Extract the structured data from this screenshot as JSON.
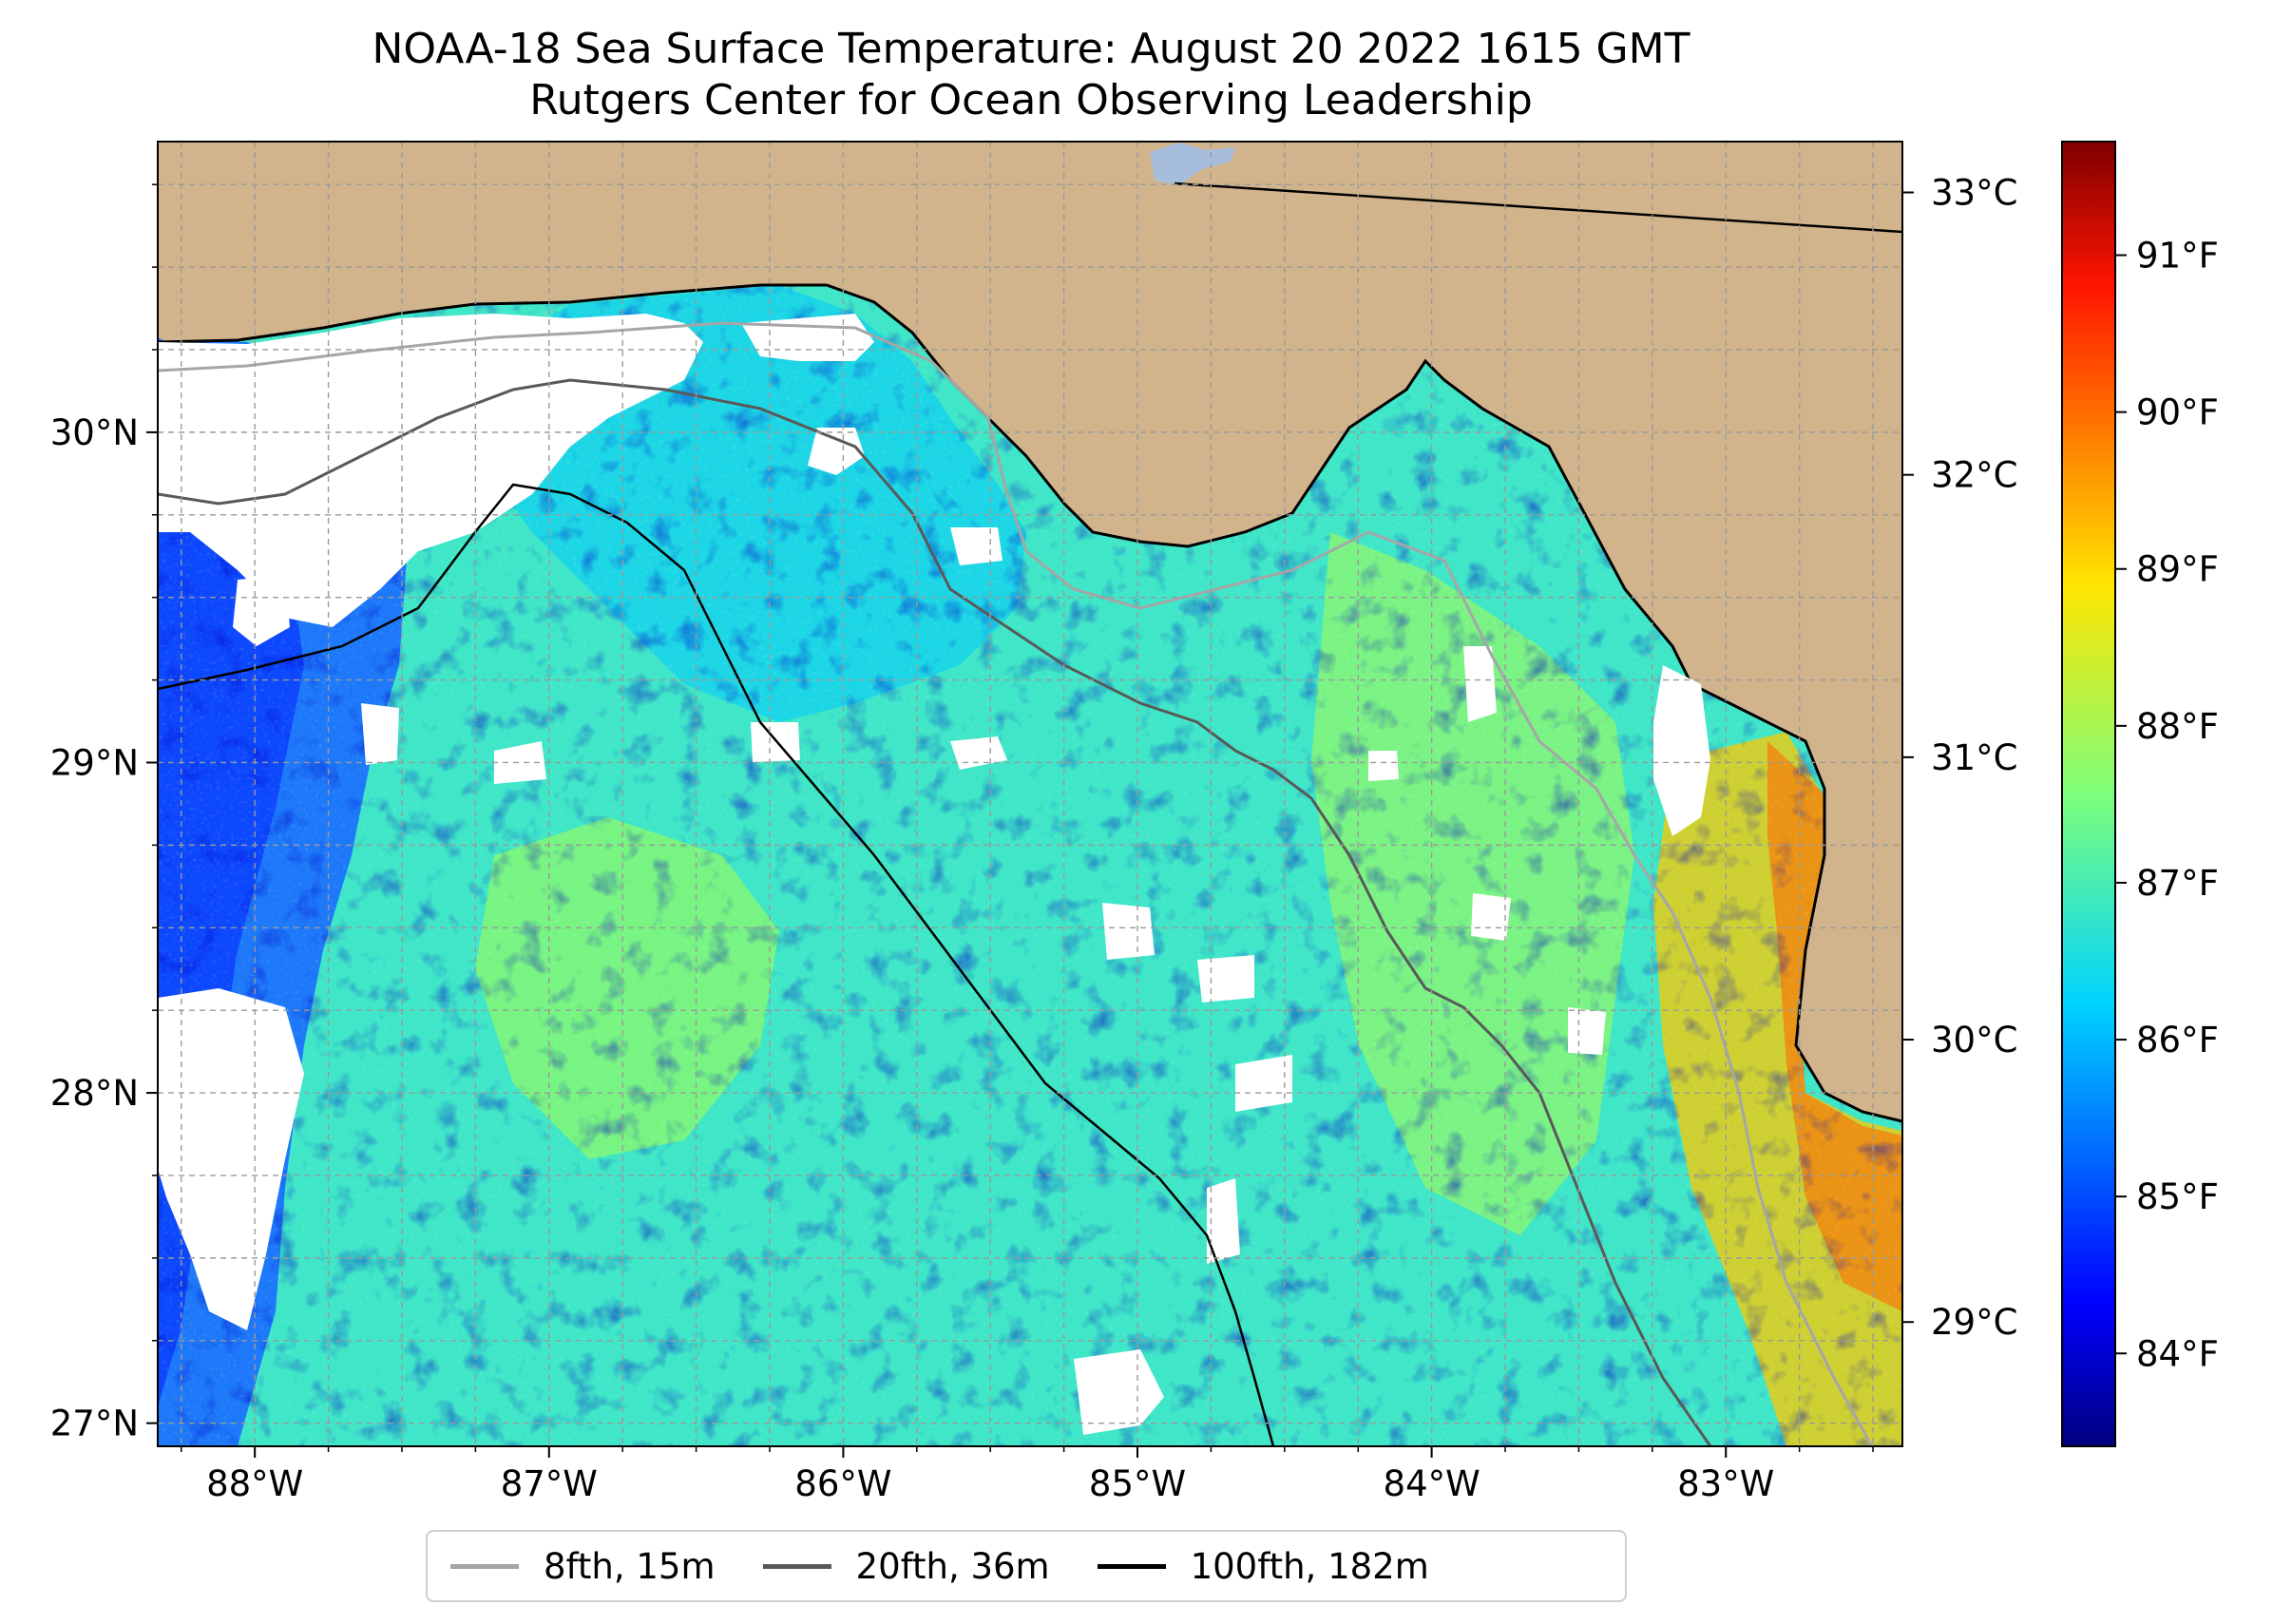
{
  "title": {
    "line1": "NOAA-18 Sea Surface Temperature: August 20 2022 1615 GMT",
    "line2": "Rutgers Center for Ocean Observing Leadership"
  },
  "map": {
    "lon_range": [
      -88.33,
      -82.4
    ],
    "lat_range": [
      26.93,
      30.88
    ],
    "lon_ticks": [
      {
        "value": -88,
        "label": "88°W"
      },
      {
        "value": -87,
        "label": "87°W"
      },
      {
        "value": -86,
        "label": "86°W"
      },
      {
        "value": -85,
        "label": "85°W"
      },
      {
        "value": -84,
        "label": "84°W"
      },
      {
        "value": -83,
        "label": "83°W"
      }
    ],
    "lat_ticks": [
      {
        "value": 27,
        "label": "27°N"
      },
      {
        "value": 28,
        "label": "28°N"
      },
      {
        "value": 29,
        "label": "29°N"
      },
      {
        "value": 30,
        "label": "30°N"
      }
    ],
    "gridlines": "dashed grey every 0.25°",
    "colors": {
      "land": "#d1b48c",
      "no_data": "#ffffff",
      "lake": "#a6bddb",
      "coastline": "#000000"
    }
  },
  "colorbar": {
    "colormap": "jet",
    "celsius_range": [
      28.56,
      33.18
    ],
    "celsius_ticks": [
      {
        "value": 29,
        "label": "29°C"
      },
      {
        "value": 30,
        "label": "30°C"
      },
      {
        "value": 31,
        "label": "31°C"
      },
      {
        "value": 32,
        "label": "32°C"
      },
      {
        "value": 33,
        "label": "33°C"
      }
    ],
    "fahrenheit_ticks": [
      {
        "value": 84,
        "label": "84°F"
      },
      {
        "value": 85,
        "label": "85°F"
      },
      {
        "value": 86,
        "label": "86°F"
      },
      {
        "value": 87,
        "label": "87°F"
      },
      {
        "value": 88,
        "label": "88°F"
      },
      {
        "value": 89,
        "label": "89°F"
      },
      {
        "value": 90,
        "label": "90°F"
      },
      {
        "value": 91,
        "label": "91°F"
      }
    ]
  },
  "legend": {
    "items": [
      {
        "label": "8fth, 15m",
        "color": "#a6a6a6"
      },
      {
        "label": "20fth, 36m",
        "color": "#595959"
      },
      {
        "label": "100fth, 182m",
        "color": "#000000"
      }
    ]
  }
}
